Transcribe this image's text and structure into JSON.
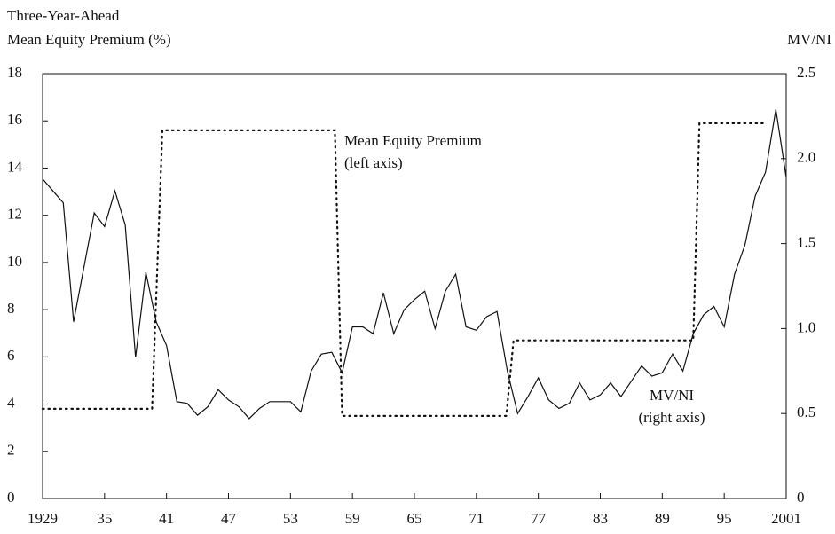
{
  "chart_data": {
    "type": "line",
    "ylabel": [
      "Three-Year-Ahead",
      "Mean Equity Premium (%)"
    ],
    "y2label": "MV/NI",
    "xlim": [
      1929,
      2001
    ],
    "xticks": [
      1929,
      {
        "value": 1935,
        "label": "35"
      },
      {
        "value": 1941,
        "label": "41"
      },
      {
        "value": 1947,
        "label": "47"
      },
      {
        "value": 1953,
        "label": "53"
      },
      {
        "value": 1959,
        "label": "59"
      },
      {
        "value": 1965,
        "label": "65"
      },
      {
        "value": 1971,
        "label": "71"
      },
      {
        "value": 1977,
        "label": "77"
      },
      {
        "value": 1983,
        "label": "83"
      },
      {
        "value": 1989,
        "label": "89"
      },
      {
        "value": 1995,
        "label": "95"
      },
      2001
    ],
    "ylim": [
      0,
      18
    ],
    "yticks": [
      0,
      2,
      4,
      6,
      8,
      10,
      12,
      14,
      16,
      18
    ],
    "y2lim": [
      0,
      2.5
    ],
    "y2ticks": [
      0,
      0.5,
      {
        "value": 1,
        "label": "1.0"
      },
      1.5,
      {
        "value": 2,
        "label": "2.0"
      },
      2.5
    ],
    "series": [
      {
        "name": "Mean Equity Premium",
        "color": "#111111",
        "style": "dotted",
        "annotation": "(left axis)",
        "x": [
          1929,
          1939.6,
          1940.6,
          1957.3,
          1958,
          1973.9,
          1974.6,
          1992,
          1992.6,
          1999
        ],
        "values": [
          3.8,
          3.8,
          15.6,
          15.6,
          3.5,
          3.5,
          6.7,
          6.7,
          15.9,
          15.9
        ]
      },
      {
        "name": "MV/NI",
        "color": "#111111",
        "style": "solid",
        "axis": "y2",
        "annotation": "(right axis)",
        "x": [
          1929,
          1930,
          1931,
          1932,
          1933,
          1934,
          1935,
          1936,
          1937,
          1938,
          1939,
          1940,
          1941,
          1942,
          1943,
          1944,
          1945,
          1946,
          1947,
          1948,
          1949,
          1950,
          1951,
          1952,
          1953,
          1954,
          1955,
          1956,
          1957,
          1958,
          1959,
          1960,
          1961,
          1962,
          1963,
          1964,
          1965,
          1966,
          1967,
          1968,
          1969,
          1970,
          1971,
          1972,
          1973,
          1974,
          1975,
          1976,
          1977,
          1978,
          1979,
          1980,
          1981,
          1982,
          1983,
          1984,
          1985,
          1986,
          1987,
          1988,
          1989,
          1990,
          1991,
          1992,
          1993,
          1994,
          1995,
          1996,
          1997,
          1998,
          1999,
          2000,
          2001
        ],
        "values": [
          1.88,
          1.81,
          1.74,
          1.04,
          1.36,
          1.68,
          1.6,
          1.81,
          1.61,
          0.83,
          1.33,
          1.04,
          0.9,
          0.57,
          0.56,
          0.49,
          0.54,
          0.64,
          0.58,
          0.54,
          0.47,
          0.53,
          0.57,
          0.57,
          0.57,
          0.51,
          0.75,
          0.85,
          0.86,
          0.74,
          1.01,
          1.01,
          0.97,
          1.21,
          0.97,
          1.11,
          1.17,
          1.22,
          1.0,
          1.22,
          1.32,
          1.01,
          0.99,
          1.07,
          1.1,
          0.75,
          0.5,
          0.6,
          0.71,
          0.58,
          0.53,
          0.56,
          0.68,
          0.58,
          0.61,
          0.68,
          0.6,
          0.69,
          0.78,
          0.72,
          0.74,
          0.85,
          0.75,
          0.97,
          1.08,
          1.13,
          1.01,
          1.32,
          1.49,
          1.78,
          1.92,
          2.29,
          1.89
        ]
      }
    ]
  }
}
